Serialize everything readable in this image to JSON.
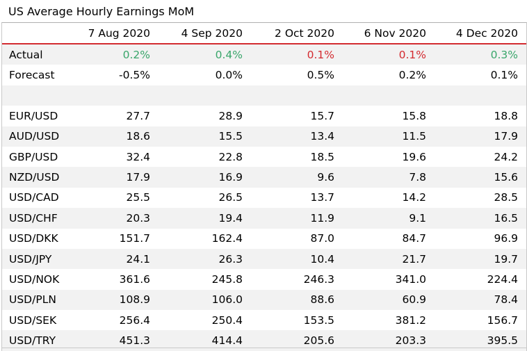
{
  "title": "US Average Hourly Earnings MoM",
  "columns": [
    "7 Aug 2020",
    "4 Sep 2020",
    "2 Oct 2020",
    "6 Nov 2020",
    "4 Dec 2020"
  ],
  "actual": {
    "label": "Actual",
    "values": [
      "0.2%",
      "0.4%",
      "0.1%",
      "0.1%",
      "0.3%"
    ],
    "colors": [
      "#3aa66b",
      "#3aa66b",
      "#d32b30",
      "#d32b30",
      "#3aa66b"
    ]
  },
  "forecast": {
    "label": "Forecast",
    "values": [
      "-0.5%",
      "0.0%",
      "0.5%",
      "0.2%",
      "0.1%"
    ]
  },
  "pairs": [
    {
      "label": "EUR/USD",
      "values": [
        "27.7",
        "28.9",
        "15.7",
        "15.8",
        "18.8"
      ]
    },
    {
      "label": "AUD/USD",
      "values": [
        "18.6",
        "15.5",
        "13.4",
        "11.5",
        "17.9"
      ]
    },
    {
      "label": "GBP/USD",
      "values": [
        "32.4",
        "22.8",
        "18.5",
        "19.6",
        "24.2"
      ]
    },
    {
      "label": "NZD/USD",
      "values": [
        "17.9",
        "16.9",
        "9.6",
        "7.8",
        "15.6"
      ]
    },
    {
      "label": "USD/CAD",
      "values": [
        "25.5",
        "26.5",
        "13.7",
        "14.2",
        "28.5"
      ]
    },
    {
      "label": "USD/CHF",
      "values": [
        "20.3",
        "19.4",
        "11.9",
        "9.1",
        "16.5"
      ]
    },
    {
      "label": "USD/DKK",
      "values": [
        "151.7",
        "162.4",
        "87.0",
        "84.7",
        "96.9"
      ]
    },
    {
      "label": "USD/JPY",
      "values": [
        "24.1",
        "26.3",
        "10.4",
        "21.7",
        "19.7"
      ]
    },
    {
      "label": "USD/NOK",
      "values": [
        "361.6",
        "245.8",
        "246.3",
        "341.0",
        "224.4"
      ]
    },
    {
      "label": "USD/PLN",
      "values": [
        "108.9",
        "106.0",
        "88.6",
        "60.9",
        "78.4"
      ]
    },
    {
      "label": "USD/SEK",
      "values": [
        "256.4",
        "250.4",
        "153.5",
        "381.2",
        "156.7"
      ]
    },
    {
      "label": "USD/TRY",
      "values": [
        "451.3",
        "414.4",
        "205.6",
        "203.3",
        "395.5"
      ]
    }
  ]
}
